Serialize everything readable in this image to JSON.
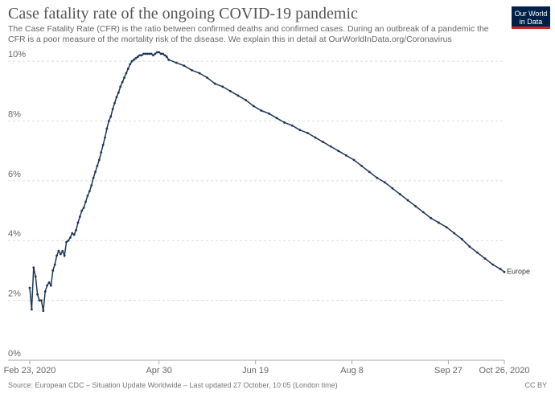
{
  "chart_data": {
    "type": "line",
    "title": "Case fatality rate of the ongoing COVID-19 pandemic",
    "subtitle": "The Case Fatality Rate (CFR) is the ratio between confirmed deaths and confirmed cases. During an outbreak of a pandemic the CFR is a poor measure of the mortality risk of the disease. We explain this in detail at OurWorldInData.org/Coronavirus",
    "source": "Source: European CDC – Situation Update Worldwide – Last updated 27 October, 10:05 (London time)",
    "license": "CC BY",
    "logo": [
      "Our World",
      "in Data"
    ],
    "x": [
      "2020-02-23",
      "2020-02-24",
      "2020-02-25",
      "2020-02-26",
      "2020-02-27",
      "2020-02-28",
      "2020-02-29",
      "2020-03-01",
      "2020-03-02",
      "2020-03-03",
      "2020-03-04",
      "2020-03-05",
      "2020-03-06",
      "2020-03-07",
      "2020-03-08",
      "2020-03-09",
      "2020-03-10",
      "2020-03-11",
      "2020-03-12",
      "2020-03-13",
      "2020-03-14",
      "2020-03-15",
      "2020-03-16",
      "2020-03-17",
      "2020-03-18",
      "2020-03-19",
      "2020-03-20",
      "2020-03-21",
      "2020-03-22",
      "2020-03-23",
      "2020-03-24",
      "2020-03-25",
      "2020-03-26",
      "2020-03-27",
      "2020-03-28",
      "2020-03-29",
      "2020-03-30",
      "2020-03-31",
      "2020-04-01",
      "2020-04-02",
      "2020-04-03",
      "2020-04-04",
      "2020-04-05",
      "2020-04-06",
      "2020-04-07",
      "2020-04-08",
      "2020-04-09",
      "2020-04-10",
      "2020-04-11",
      "2020-04-12",
      "2020-04-13",
      "2020-04-14",
      "2020-04-15",
      "2020-04-16",
      "2020-04-17",
      "2020-04-18",
      "2020-04-19",
      "2020-04-20",
      "2020-04-21",
      "2020-04-22",
      "2020-04-23",
      "2020-04-24",
      "2020-04-25",
      "2020-04-26",
      "2020-04-27",
      "2020-04-28",
      "2020-04-29",
      "2020-04-30",
      "2020-05-01",
      "2020-05-02",
      "2020-05-03",
      "2020-05-04",
      "2020-05-05",
      "2020-05-09",
      "2020-05-13",
      "2020-05-17",
      "2020-05-21",
      "2020-05-25",
      "2020-05-29",
      "2020-06-02",
      "2020-06-06",
      "2020-06-10",
      "2020-06-14",
      "2020-06-18",
      "2020-06-22",
      "2020-06-26",
      "2020-06-30",
      "2020-07-04",
      "2020-07-08",
      "2020-07-12",
      "2020-07-16",
      "2020-07-20",
      "2020-07-24",
      "2020-07-28",
      "2020-08-01",
      "2020-08-05",
      "2020-08-09",
      "2020-08-13",
      "2020-08-17",
      "2020-08-21",
      "2020-08-25",
      "2020-08-29",
      "2020-09-02",
      "2020-09-06",
      "2020-09-10",
      "2020-09-14",
      "2020-09-18",
      "2020-09-22",
      "2020-09-26",
      "2020-09-30",
      "2020-10-04",
      "2020-10-08",
      "2020-10-12",
      "2020-10-16",
      "2020-10-20",
      "2020-10-24",
      "2020-10-26"
    ],
    "series": [
      {
        "name": "Europe",
        "color": "#1d3557",
        "values": [
          2.42,
          1.7,
          3.1,
          2.8,
          2.2,
          2.0,
          2.0,
          1.65,
          2.3,
          2.5,
          2.6,
          2.5,
          3.0,
          3.2,
          3.5,
          3.65,
          3.55,
          3.65,
          3.5,
          3.95,
          4.0,
          4.1,
          4.25,
          4.2,
          4.35,
          4.6,
          4.8,
          5.0,
          5.1,
          5.3,
          5.5,
          5.65,
          5.85,
          6.1,
          6.3,
          6.5,
          6.7,
          6.95,
          7.2,
          7.45,
          7.75,
          8.0,
          8.15,
          8.4,
          8.6,
          8.8,
          8.95,
          9.15,
          9.3,
          9.45,
          9.6,
          9.75,
          9.9,
          10.0,
          10.05,
          10.1,
          10.15,
          10.2,
          10.2,
          10.25,
          10.25,
          10.25,
          10.25,
          10.25,
          10.2,
          10.25,
          10.3,
          10.3,
          10.25,
          10.25,
          10.2,
          10.15,
          10.05,
          9.95,
          9.85,
          9.7,
          9.6,
          9.45,
          9.25,
          9.15,
          9.0,
          8.85,
          8.7,
          8.5,
          8.35,
          8.25,
          8.1,
          7.95,
          7.85,
          7.7,
          7.6,
          7.45,
          7.3,
          7.15,
          7.0,
          6.85,
          6.7,
          6.5,
          6.3,
          6.1,
          5.95,
          5.75,
          5.55,
          5.35,
          5.15,
          4.95,
          4.75,
          4.6,
          4.45,
          4.25,
          4.05,
          3.8,
          3.6,
          3.4,
          3.2,
          3.05,
          2.95
        ]
      }
    ],
    "xlim": [
      "2020-02-23",
      "2020-10-26"
    ],
    "xticks": [
      {
        "value": "2020-02-23",
        "label": "Feb 23, 2020"
      },
      {
        "value": "2020-04-30",
        "label": "Apr 30"
      },
      {
        "value": "2020-06-19",
        "label": "Jun 19"
      },
      {
        "value": "2020-08-08",
        "label": "Aug 8"
      },
      {
        "value": "2020-09-27",
        "label": "Sep 27"
      },
      {
        "value": "2020-10-26",
        "label": "Oct 26, 2020"
      }
    ],
    "ylim": [
      0,
      10.3
    ],
    "yticks": [
      {
        "value": 0,
        "label": "0%"
      },
      {
        "value": 2,
        "label": "2%"
      },
      {
        "value": 4,
        "label": "4%"
      },
      {
        "value": 6,
        "label": "6%"
      },
      {
        "value": 8,
        "label": "8%"
      },
      {
        "value": 10,
        "label": "10%"
      }
    ],
    "grid": true
  }
}
